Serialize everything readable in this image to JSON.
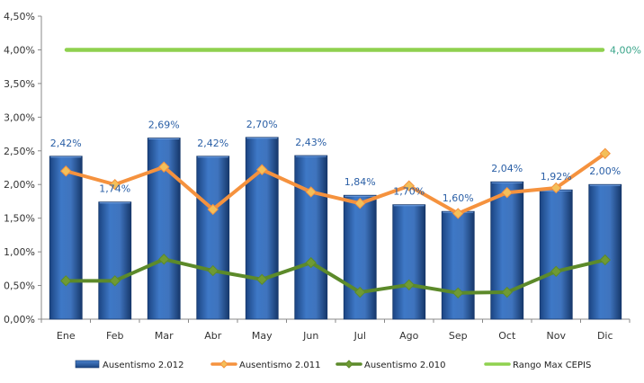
{
  "chart_data": {
    "type": "bar",
    "categories": [
      "Ene",
      "Feb",
      "Mar",
      "Abr",
      "May",
      "Jun",
      "Jul",
      "Ago",
      "Sep",
      "Oct",
      "Nov",
      "Dic"
    ],
    "y_tick_labels": [
      "0,00%",
      "0,50%",
      "1,00%",
      "1,50%",
      "2,00%",
      "2,50%",
      "3,00%",
      "3,50%",
      "4,00%",
      "4,50%"
    ],
    "ylim": [
      0,
      4.5
    ],
    "y_unit": "%",
    "grid": false,
    "legend_position": "bottom",
    "series": [
      {
        "name": "Ausentismo 2.012",
        "kind": "bar",
        "color": "#2a5fa6",
        "values": [
          2.42,
          1.74,
          2.69,
          2.42,
          2.7,
          2.43,
          1.84,
          1.7,
          1.6,
          2.04,
          1.92,
          2.0
        ],
        "labels": [
          "2,42%",
          "1,74%",
          "2,69%",
          "2,42%",
          "2,70%",
          "2,43%",
          "1,84%",
          "1,70%",
          "1,60%",
          "2,04%",
          "1,92%",
          "2,00%"
        ]
      },
      {
        "name": "Ausentismo 2.011",
        "kind": "line",
        "color": "#f5923e",
        "marker_color": "#f3bf5a",
        "values": [
          2.2,
          2.0,
          2.26,
          1.63,
          2.22,
          1.89,
          1.72,
          1.98,
          1.57,
          1.88,
          1.95,
          2.46
        ]
      },
      {
        "name": "Ausentismo 2.010",
        "kind": "line",
        "color": "#5c8a2a",
        "marker_color": "#6f9a34",
        "values": [
          0.57,
          0.57,
          0.89,
          0.72,
          0.59,
          0.84,
          0.4,
          0.51,
          0.39,
          0.4,
          0.71,
          0.88
        ]
      },
      {
        "name": "Rango Max CEPIS",
        "kind": "line",
        "color": "#8fd14f",
        "values": [
          4.0,
          4.0,
          4.0,
          4.0,
          4.0,
          4.0,
          4.0,
          4.0,
          4.0,
          4.0,
          4.0,
          4.0
        ],
        "end_label": "4,00%",
        "end_label_color": "#3aa58a"
      }
    ]
  }
}
